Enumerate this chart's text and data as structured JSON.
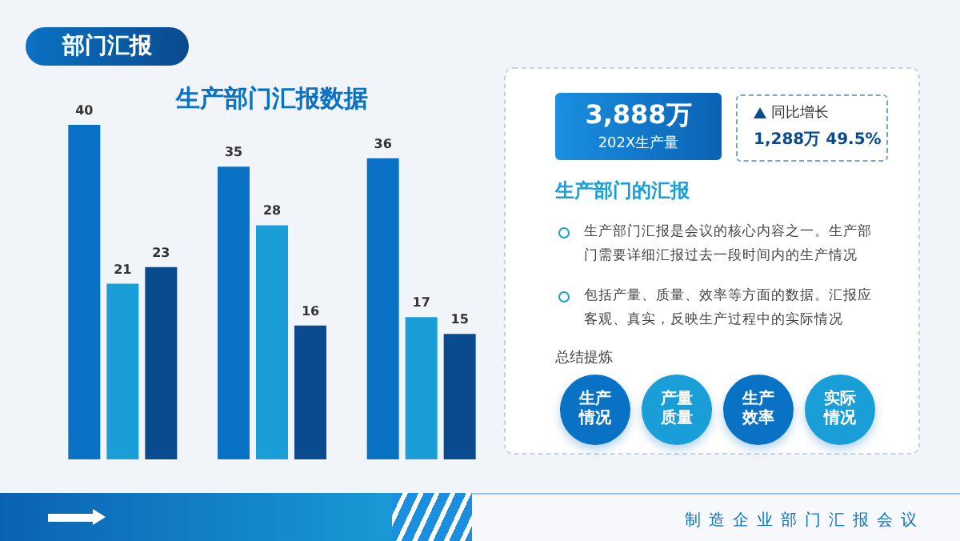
{
  "chart_data": {
    "type": "bar",
    "title": "生产部门汇报数据",
    "categories": [
      null,
      null,
      null
    ],
    "series": [
      {
        "color": "#0a72c4",
        "values": [
          40,
          35,
          36
        ]
      },
      {
        "color": "#1a9ed8",
        "values": [
          21,
          28,
          17
        ]
      },
      {
        "color": "#0a4a8e",
        "values": [
          23,
          16,
          15
        ]
      }
    ],
    "data_labels": true,
    "grid": false,
    "annotations": [
      "部门汇报",
      "3,888万",
      "202X生产量",
      "同比增长",
      "1,288万 49.5%",
      "生产部门的汇报",
      "生产部门汇报是会议的核心内容之一。生产部门需要详细汇报过去一段时间内的生产情况",
      "包括产量、质量、效率等方面的数据。汇报应客观、真实，反映生产过程中的实际情况",
      "总结提炼",
      "生产情况",
      "产量质量",
      "生产效率",
      "实际情况",
      "制造企业部门汇报会议"
    ]
  }
}
